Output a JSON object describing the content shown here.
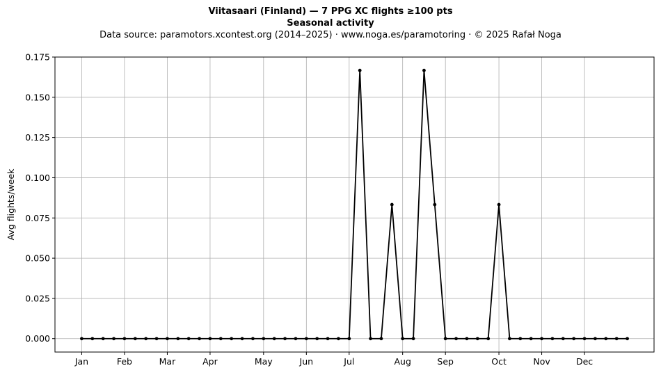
{
  "header": {
    "title": "Viitasaari (Finland)  —  7 PPG XC flights ≥100 pts",
    "subtitle": "Seasonal activity",
    "source": "Data source: paramotors.xcontest.org (2014–2025)  ·  www.noga.es/paramotoring  ·  © 2025 Rafał Noga"
  },
  "chart_data": {
    "type": "line",
    "title": "Viitasaari (Finland)  —  7 PPG XC flights ≥100 pts",
    "subtitle": "Seasonal activity",
    "xlabel": "",
    "ylabel": "Avg flights/week",
    "x_unit": "week of year",
    "xlim": [
      -1.5,
      54.5
    ],
    "ylim": [
      -0.00833,
      0.175
    ],
    "yticks": [
      0.0,
      0.025,
      0.05,
      0.075,
      0.1,
      0.125,
      0.15,
      0.175
    ],
    "ytick_labels": [
      "0.000",
      "0.025",
      "0.050",
      "0.075",
      "0.100",
      "0.125",
      "0.150",
      "0.175"
    ],
    "xticks": [
      {
        "label": "Jan",
        "week": 1
      },
      {
        "label": "Feb",
        "week": 5
      },
      {
        "label": "Mar",
        "week": 9
      },
      {
        "label": "Apr",
        "week": 13
      },
      {
        "label": "May",
        "week": 18
      },
      {
        "label": "Jun",
        "week": 22
      },
      {
        "label": "Jul",
        "week": 26
      },
      {
        "label": "Aug",
        "week": 31
      },
      {
        "label": "Sep",
        "week": 35
      },
      {
        "label": "Oct",
        "week": 40
      },
      {
        "label": "Nov",
        "week": 44
      },
      {
        "label": "Dec",
        "week": 48
      }
    ],
    "grid": true,
    "series": [
      {
        "color": "#000000",
        "marker": "dot",
        "x": [
          1,
          2,
          3,
          4,
          5,
          6,
          7,
          8,
          9,
          10,
          11,
          12,
          13,
          14,
          15,
          16,
          17,
          18,
          19,
          20,
          21,
          22,
          23,
          24,
          25,
          26,
          27,
          28,
          29,
          30,
          31,
          32,
          33,
          34,
          35,
          36,
          37,
          38,
          39,
          40,
          41,
          42,
          43,
          44,
          45,
          46,
          47,
          48,
          49,
          50,
          51,
          52
        ],
        "values": [
          0,
          0,
          0,
          0,
          0,
          0,
          0,
          0,
          0,
          0,
          0,
          0,
          0,
          0,
          0,
          0,
          0,
          0,
          0,
          0,
          0,
          0,
          0,
          0,
          0,
          0,
          0.1667,
          0,
          0,
          0.0833,
          0,
          0,
          0.1667,
          0.0833,
          0,
          0,
          0,
          0,
          0,
          0.0833,
          0,
          0,
          0,
          0,
          0,
          0,
          0,
          0,
          0,
          0,
          0,
          0
        ]
      }
    ]
  }
}
